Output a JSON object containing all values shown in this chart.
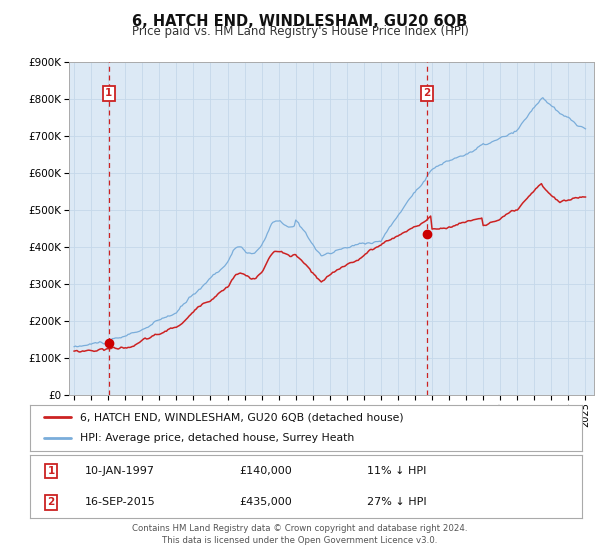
{
  "title": "6, HATCH END, WINDLESHAM, GU20 6QB",
  "subtitle": "Price paid vs. HM Land Registry's House Price Index (HPI)",
  "plot_bg_color": "#dce9f5",
  "fig_bg_color": "#ffffff",
  "ylim": [
    0,
    900000
  ],
  "yticks": [
    0,
    100000,
    200000,
    300000,
    400000,
    500000,
    600000,
    700000,
    800000,
    900000
  ],
  "ytick_labels": [
    "£0",
    "£100K",
    "£200K",
    "£300K",
    "£400K",
    "£500K",
    "£600K",
    "£700K",
    "£800K",
    "£900K"
  ],
  "xlim_start": 1994.7,
  "xlim_end": 2025.5,
  "xtick_years": [
    1995,
    1996,
    1997,
    1998,
    1999,
    2000,
    2001,
    2002,
    2003,
    2004,
    2005,
    2006,
    2007,
    2008,
    2009,
    2010,
    2011,
    2012,
    2013,
    2014,
    2015,
    2016,
    2017,
    2018,
    2019,
    2020,
    2021,
    2022,
    2023,
    2024,
    2025
  ],
  "hpi_color": "#7aadda",
  "price_color": "#cc2222",
  "marker_color": "#cc0000",
  "vline_color": "#cc2222",
  "grid_color": "#c5d8ea",
  "annotation_box_color": "#cc2222",
  "legend_border_color": "#aaaaaa",
  "sale1_date_num": 1997.03,
  "sale1_price": 140000,
  "sale2_date_num": 2015.71,
  "sale2_price": 435000,
  "footer_text": "Contains HM Land Registry data © Crown copyright and database right 2024.\nThis data is licensed under the Open Government Licence v3.0.",
  "legend_line1": "6, HATCH END, WINDLESHAM, GU20 6QB (detached house)",
  "legend_line2": "HPI: Average price, detached house, Surrey Heath",
  "annot1_label": "1",
  "annot1_date": "10-JAN-1997",
  "annot1_price": "£140,000",
  "annot1_hpi": "11% ↓ HPI",
  "annot2_label": "2",
  "annot2_date": "16-SEP-2015",
  "annot2_price": "£435,000",
  "annot2_hpi": "27% ↓ HPI"
}
